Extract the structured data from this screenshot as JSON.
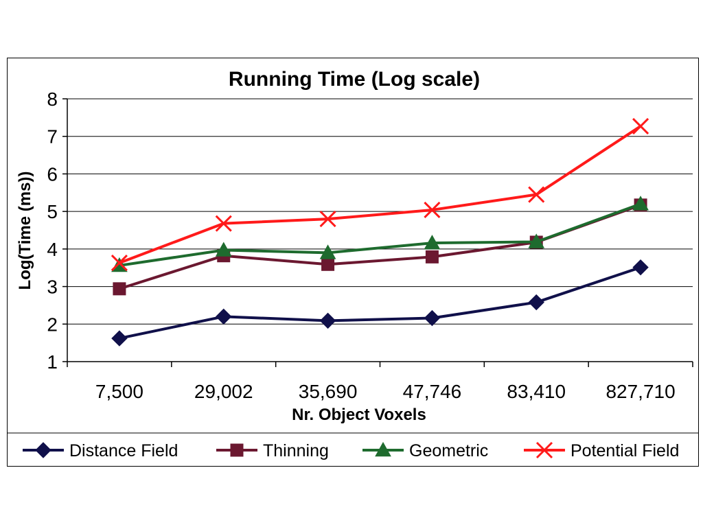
{
  "chart_data": {
    "type": "line",
    "title": "Running Time (Log scale)",
    "xlabel": "Nr. Object Voxels",
    "ylabel": "Log(Time (ms))",
    "categories": [
      "7,500",
      "29,002",
      "35,690",
      "47,746",
      "83,410",
      "827,710"
    ],
    "ylim": [
      1,
      8
    ],
    "yticks": [
      1,
      2,
      3,
      4,
      5,
      6,
      7,
      8
    ],
    "grid": "horizontal",
    "legend_position": "bottom",
    "series": [
      {
        "name": "Distance Field",
        "color": "#10104a",
        "marker": "diamond",
        "values": [
          1.62,
          2.2,
          2.09,
          2.16,
          2.58,
          3.51
        ]
      },
      {
        "name": "Thinning",
        "color": "#6b1830",
        "marker": "square",
        "values": [
          2.94,
          3.82,
          3.59,
          3.79,
          4.18,
          5.17
        ]
      },
      {
        "name": "Geometric",
        "color": "#1e6b2e",
        "marker": "triangle",
        "values": [
          3.56,
          3.97,
          3.9,
          4.16,
          4.19,
          5.2
        ]
      },
      {
        "name": "Potential Field",
        "color": "#ff1a1a",
        "marker": "x",
        "values": [
          3.63,
          4.68,
          4.8,
          5.04,
          5.45,
          7.27
        ]
      }
    ]
  }
}
